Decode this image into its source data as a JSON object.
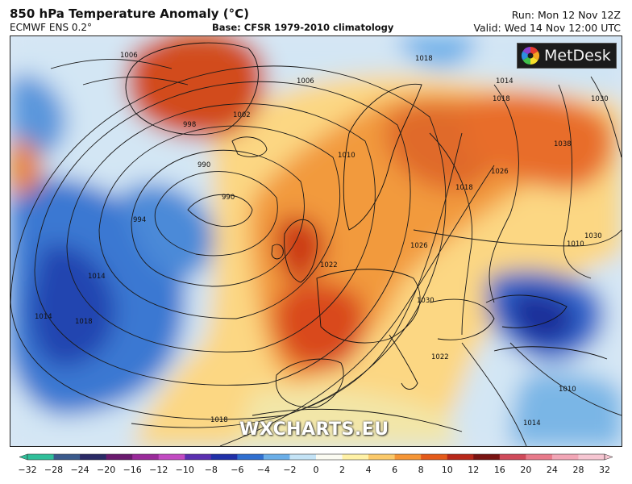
{
  "header": {
    "title": "850 hPa Temperature Anomaly (°C)",
    "model": "ECMWF ENS 0.2°",
    "base": "Base: CFSR 1979-2010 climatology",
    "run": "Run: Mon 12 Nov 12Z",
    "valid": "Valid: Wed 14 Nov 12:00 UTC"
  },
  "branding": {
    "logo_text": "MetDesk",
    "watermark": "WXCHARTS.EU"
  },
  "isobars": {
    "labels": [
      "1006",
      "1006",
      "998",
      "1002",
      "990",
      "990",
      "994",
      "1010",
      "1018",
      "1014",
      "1018",
      "1030",
      "1026",
      "1018",
      "1038",
      "1030",
      "1022",
      "1026",
      "1030",
      "1022",
      "1014",
      "1018",
      "1018",
      "1014",
      "1010",
      "1010",
      "1014"
    ]
  },
  "colorbar": {
    "ticks": [
      "−32",
      "−28",
      "−24",
      "−20",
      "−16",
      "−12",
      "−10",
      "−8",
      "−6",
      "−4",
      "−2",
      "0",
      "2",
      "4",
      "6",
      "8",
      "10",
      "12",
      "16",
      "20",
      "24",
      "28",
      "32"
    ],
    "colors": [
      "#2fbf9a",
      "#3a5a8c",
      "#2a2a66",
      "#6a1a6e",
      "#9a2a9a",
      "#c24ac2",
      "#5a2fb0",
      "#2030a8",
      "#2f6fd0",
      "#6aaee8",
      "#c4e3f6",
      "#fbfbf2",
      "#fff1a6",
      "#fbc96a",
      "#f59536",
      "#e45a1a",
      "#b8281a",
      "#7a1412",
      "#d04a5a",
      "#e87a8a",
      "#f2a6b6",
      "#f6c6d2"
    ]
  }
}
